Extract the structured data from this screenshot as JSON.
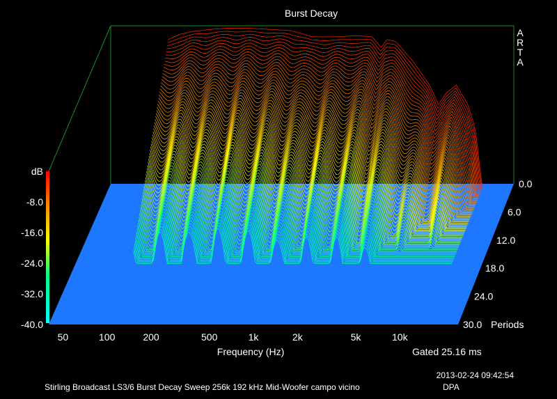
{
  "chart_data": {
    "type": "waterfall-3d",
    "title": "Burst Decay",
    "watermark": "ARTA",
    "xlabel": "Frequency (Hz)",
    "x_scale": "log",
    "xlim": [
      40,
      25000
    ],
    "x_ticks": [
      {
        "value": 50,
        "label": "50"
      },
      {
        "value": 100,
        "label": "100"
      },
      {
        "value": 200,
        "label": "200"
      },
      {
        "value": 500,
        "label": "500"
      },
      {
        "value": 1000,
        "label": "1k"
      },
      {
        "value": 2000,
        "label": "2k"
      },
      {
        "value": 5000,
        "label": "5k"
      },
      {
        "value": 10000,
        "label": "10k"
      }
    ],
    "ylabel": "dB",
    "ylim": [
      -40,
      0
    ],
    "y_ticks": [
      {
        "value": 0,
        "label": "dB"
      },
      {
        "value": -8,
        "label": "-8.0"
      },
      {
        "value": -16,
        "label": "-16.0"
      },
      {
        "value": -24,
        "label": "-24.0"
      },
      {
        "value": -32,
        "label": "-32.0"
      },
      {
        "value": -40,
        "label": "-40.0"
      }
    ],
    "z_label": "Periods",
    "zlim": [
      0,
      30
    ],
    "z_ticks": [
      {
        "value": 0,
        "label": "0.0"
      },
      {
        "value": 6,
        "label": "6.0"
      },
      {
        "value": 12,
        "label": "12.0"
      },
      {
        "value": 18,
        "label": "18.0"
      },
      {
        "value": 24,
        "label": "24.0"
      },
      {
        "value": 30,
        "label": "30.0"
      }
    ],
    "floor_color": "#1e78ff",
    "frame_color": "#1a8a2a",
    "colormap": [
      "#00ffff",
      "#00ff88",
      "#ffff00",
      "#ff8800",
      "#ff0000"
    ],
    "gate_note": "Gated 25.16 ms",
    "initial_response": [
      {
        "f": 100,
        "db": -3.5
      },
      {
        "f": 120,
        "db": -2.2
      },
      {
        "f": 150,
        "db": -1.4
      },
      {
        "f": 200,
        "db": -0.9
      },
      {
        "f": 260,
        "db": -0.6
      },
      {
        "f": 350,
        "db": -0.6
      },
      {
        "f": 500,
        "db": -0.9
      },
      {
        "f": 700,
        "db": -1.2
      },
      {
        "f": 850,
        "db": -2.0
      },
      {
        "f": 1000,
        "db": -2.8
      },
      {
        "f": 1500,
        "db": -2.8
      },
      {
        "f": 2000,
        "db": -2.5
      },
      {
        "f": 2600,
        "db": -2.8
      },
      {
        "f": 3000,
        "db": -5.5
      },
      {
        "f": 3300,
        "db": -3.5
      },
      {
        "f": 3800,
        "db": -4.0
      },
      {
        "f": 5000,
        "db": -9.0
      },
      {
        "f": 6500,
        "db": -15.0
      },
      {
        "f": 7500,
        "db": -20.0
      },
      {
        "f": 8500,
        "db": -17.0
      },
      {
        "f": 10000,
        "db": -15.0
      },
      {
        "f": 12000,
        "db": -20.0
      },
      {
        "f": 13500,
        "db": -26.0
      },
      {
        "f": 15000,
        "db": -40.0
      }
    ]
  },
  "footer": {
    "timestamp": "2013-02-24  09:42:54",
    "caption": "Stirling Broadcast LS3/6 Burst Decay Sweep 256k 192 kHz Mid-Woofer campo vicino",
    "author": "DPA"
  }
}
